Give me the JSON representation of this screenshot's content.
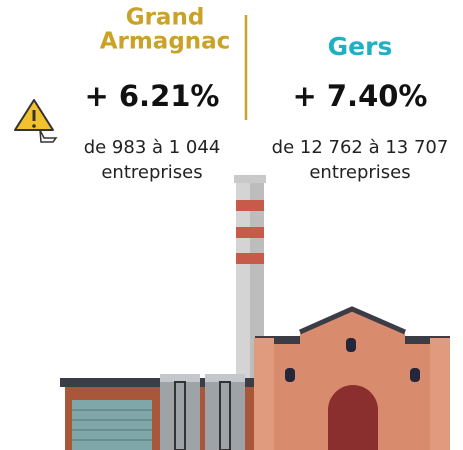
{
  "left": {
    "title_lines": [
      "Grand",
      "Armagnac"
    ],
    "change": "+ 6.21%",
    "detail_lines": [
      "de 983 à 1 044",
      "entreprises"
    ]
  },
  "right": {
    "title": "Gers",
    "change": "+ 7.40%",
    "detail_lines": [
      "de 12 762 à 13 707",
      "entreprises"
    ]
  }
}
